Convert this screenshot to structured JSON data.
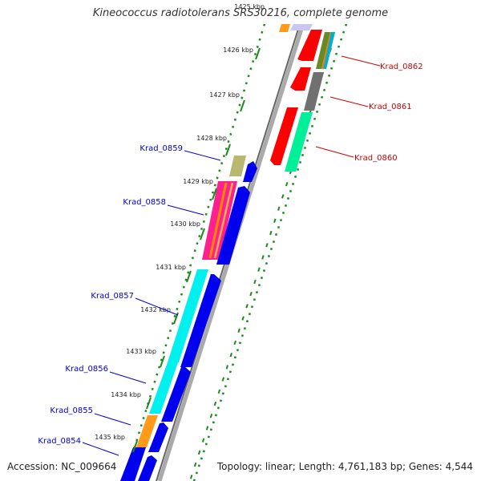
{
  "title": "Kineococcus radiotolerans SRS30216, complete genome",
  "accession": "Accession: NC_009664",
  "topology": "Topology: linear; Length: 4,761,183 bp; Genes: 4,544",
  "kbp_ticks": [
    "1425 kbp",
    "1426 kbp",
    "1427 kbp",
    "1428 kbp",
    "1429 kbp",
    "1430 kbp",
    "1431 kbp",
    "1432 kbp",
    "1433 kbp",
    "1434 kbp",
    "1435 kbp"
  ],
  "forward_labels": [
    "Krad_0862",
    "Krad_0861",
    "Krad_0860"
  ],
  "reverse_labels": [
    "Krad_0859",
    "Krad_0858",
    "Krad_0857",
    "Krad_0856",
    "Krad_0855",
    "Krad_0854"
  ],
  "colors": {
    "forward_label": "#cc0000",
    "reverse_label": "#0000cc",
    "forward_gene": "#ff0000",
    "reverse_gene": "#0000ee",
    "tick": "#1a8a1a",
    "backbone": "#888888"
  }
}
